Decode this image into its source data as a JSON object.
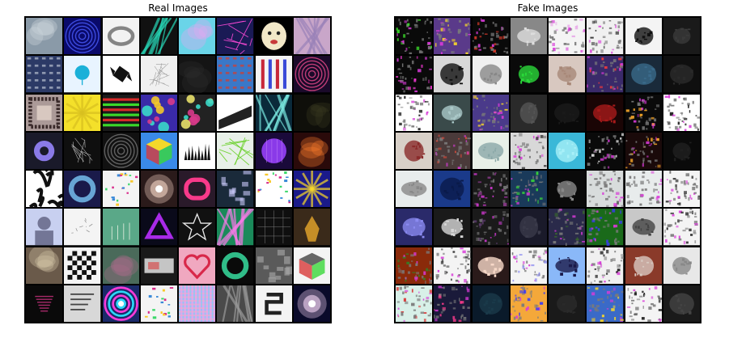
{
  "titles": {
    "real": "Real Images",
    "fake": "Fake Images"
  },
  "grid": {
    "rows": 8,
    "cols": 8
  },
  "real_tiles": [
    {
      "bg": "#8a9aa8",
      "fg": "#cfd6dc",
      "motif": "blur"
    },
    {
      "bg": "#0a0a6a",
      "fg": "#4a5cff",
      "motif": "rings"
    },
    {
      "bg": "#f2f2f2",
      "fg": "#555555",
      "motif": "ring-outline"
    },
    {
      "bg": "#111111",
      "fg": "#27d6b6",
      "motif": "streaks"
    },
    {
      "bg": "#6ad4e8",
      "fg": "#e6a6f0",
      "motif": "blur"
    },
    {
      "bg": "#1a1a55",
      "fg": "#ff4ad8",
      "motif": "lines"
    },
    {
      "bg": "#000000",
      "fg": "#f2e8c8",
      "motif": "face"
    },
    {
      "bg": "#c9a6c9",
      "fg": "#9a82b8",
      "motif": "streaks"
    },
    {
      "bg": "#2c3a66",
      "fg": "#b8c0d0",
      "motif": "pattern"
    },
    {
      "bg": "#e8f4ff",
      "fg": "#1ab0d8",
      "motif": "drop"
    },
    {
      "bg": "#ffffff",
      "fg": "#111111",
      "motif": "candy"
    },
    {
      "bg": "#f0f0f0",
      "fg": "#999999",
      "motif": "mesh"
    },
    {
      "bg": "#141414",
      "fg": "#2a2a2a",
      "motif": "blur"
    },
    {
      "bg": "#3a78c8",
      "fg": "#d83a2a",
      "motif": "pattern"
    },
    {
      "bg": "#f4f4f4",
      "fg": "#c8283a",
      "motif": "stripes-v"
    },
    {
      "bg": "#1a0a2a",
      "fg": "#e84a8a",
      "motif": "rings"
    },
    {
      "bg": "#ab9a98",
      "fg": "#3a2a2a",
      "motif": "frame"
    },
    {
      "bg": "#f4e02a",
      "fg": "#d8c020",
      "motif": "burst"
    },
    {
      "bg": "#1a1a1a",
      "fg": "#d82a2a",
      "motif": "stripes-h"
    },
    {
      "bg": "#3a2aa8",
      "fg": "#f4c82a",
      "motif": "dots"
    },
    {
      "bg": "#222222",
      "fg": "#e8e06a",
      "motif": "dots"
    },
    {
      "bg": "#ffffff",
      "fg": "#222222",
      "motif": "cylinder"
    },
    {
      "bg": "#0a2a3a",
      "fg": "#7ae8e0",
      "motif": "streaks"
    },
    {
      "bg": "#0f0f0a",
      "fg": "#3a3a20",
      "motif": "blur"
    },
    {
      "bg": "#1a1a2a",
      "fg": "#8a7ae8",
      "motif": "gear"
    },
    {
      "bg": "#0f0f0f",
      "fg": "#c8c8c8",
      "motif": "mesh"
    },
    {
      "bg": "#111111",
      "fg": "#777777",
      "motif": "rings"
    },
    {
      "bg": "#3a8ae8",
      "fg": "#f4d82a",
      "motif": "cube"
    },
    {
      "bg": "#ffffff",
      "fg": "#111111",
      "motif": "spikes"
    },
    {
      "bg": "#e8f0e8",
      "fg": "#6ad02a",
      "motif": "lines"
    },
    {
      "bg": "#1a0a3a",
      "fg": "#8a3ae8",
      "motif": "sphere"
    },
    {
      "bg": "#2a0a0a",
      "fg": "#f87a2a",
      "motif": "blur"
    },
    {
      "bg": "#ffffff",
      "fg": "#111111",
      "motif": "maze"
    },
    {
      "bg": "#1a1a4a",
      "fg": "#7ac8f8",
      "motif": "ring-glow"
    },
    {
      "bg": "#f4f4f4",
      "fg": "#d82a8a",
      "motif": "confetti"
    },
    {
      "bg": "#2a1a1a",
      "fg": "#f8d8c8",
      "motif": "glow"
    },
    {
      "bg": "#2a1a2a",
      "fg": "#f83a8a",
      "motif": "capsule"
    },
    {
      "bg": "#1a2a3a",
      "fg": "#c8c8f8",
      "motif": "city"
    },
    {
      "bg": "#ffffff",
      "fg": "#3a2a8a",
      "motif": "confetti"
    },
    {
      "bg": "#1a1a8a",
      "fg": "#f8d82a",
      "motif": "burst"
    },
    {
      "bg": "#c8d0f0",
      "fg": "#3a3a5a",
      "motif": "portrait"
    },
    {
      "bg": "#f4f4f4",
      "fg": "#888888",
      "motif": "sketch"
    },
    {
      "bg": "#5aa888",
      "fg": "#d8e8d8",
      "motif": "sticks"
    },
    {
      "bg": "#0a0a1a",
      "fg": "#a82ae8",
      "motif": "triangle"
    },
    {
      "bg": "#111111",
      "fg": "#e8e8e8",
      "motif": "star"
    },
    {
      "bg": "#1a8a5a",
      "fg": "#f87ae8",
      "motif": "streaks"
    },
    {
      "bg": "#0f0f0f",
      "fg": "#888888",
      "motif": "grid"
    },
    {
      "bg": "#3a2a1a",
      "fg": "#e8a82a",
      "motif": "figure"
    },
    {
      "bg": "#6a5a4a",
      "fg": "#d8c8a8",
      "motif": "blur"
    },
    {
      "bg": "#f4f4f4",
      "fg": "#111111",
      "motif": "checker"
    },
    {
      "bg": "#4a6a5a",
      "fg": "#a86a8a",
      "motif": "blur"
    },
    {
      "bg": "#1a1a1a",
      "fg": "#f0f0f0",
      "motif": "screen"
    },
    {
      "bg": "#f0a8c0",
      "fg": "#d8284a",
      "motif": "heart"
    },
    {
      "bg": "#0a0a0a",
      "fg": "#3ae8a8",
      "motif": "ring-glow"
    },
    {
      "bg": "#5a5a5a",
      "fg": "#aaaaaa",
      "motif": "city"
    },
    {
      "bg": "#f4f4f4",
      "fg": "#666666",
      "motif": "cube"
    },
    {
      "bg": "#0a0a0a",
      "fg": "#a82a6a",
      "motif": "heart-stripes"
    },
    {
      "bg": "#d8d8d8",
      "fg": "#444444",
      "motif": "text-lines"
    },
    {
      "bg": "#1a2a6a",
      "fg": "#2ad8f8",
      "motif": "swirl"
    },
    {
      "bg": "#f4f4f4",
      "fg": "#d82a2a",
      "motif": "confetti"
    },
    {
      "bg": "#d8a8f0",
      "fg": "#6ad8f0",
      "motif": "plaid"
    },
    {
      "bg": "#4a4a4a",
      "fg": "#9a9a9a",
      "motif": "streaks"
    },
    {
      "bg": "#f4f4f4",
      "fg": "#222222",
      "motif": "glyph"
    },
    {
      "bg": "#0a0a2a",
      "fg": "#f8d8f8",
      "motif": "glow"
    }
  ],
  "fake_tiles": [
    {
      "bg": "#0a0a0a",
      "fg": "#3ad82a",
      "motif": "noise"
    },
    {
      "bg": "#5a3a8a",
      "fg": "#f8d82a",
      "motif": "noise"
    },
    {
      "bg": "#0a0a0a",
      "fg": "#d83a2a",
      "motif": "noise"
    },
    {
      "bg": "#888888",
      "fg": "#dddddd",
      "motif": "blob"
    },
    {
      "bg": "#f4f4f4",
      "fg": "#e8a8e8",
      "motif": "noise"
    },
    {
      "bg": "#f0f0f0",
      "fg": "#333333",
      "motif": "noise"
    },
    {
      "bg": "#f4f4f4",
      "fg": "#111111",
      "motif": "blob"
    },
    {
      "bg": "#1a1a1a",
      "fg": "#3a3a3a",
      "motif": "blob"
    },
    {
      "bg": "#0a0a0a",
      "fg": "#f83ad8",
      "motif": "noise"
    },
    {
      "bg": "#d8d8d8",
      "fg": "#111111",
      "motif": "blob"
    },
    {
      "bg": "#f0f0f0",
      "fg": "#888888",
      "motif": "blob"
    },
    {
      "bg": "#0a0a0a",
      "fg": "#2ad83a",
      "motif": "blob"
    },
    {
      "bg": "#d8c8c0",
      "fg": "#a88878",
      "motif": "blob"
    },
    {
      "bg": "#3a2a6a",
      "fg": "#f83a3a",
      "motif": "noise"
    },
    {
      "bg": "#1a2a3a",
      "fg": "#3a6a8a",
      "motif": "blob"
    },
    {
      "bg": "#0f0f0f",
      "fg": "#2a2a2a",
      "motif": "blob"
    },
    {
      "bg": "#ffffff",
      "fg": "#111111",
      "motif": "noise"
    },
    {
      "bg": "#3a4a4a",
      "fg": "#aac8c8",
      "motif": "blob"
    },
    {
      "bg": "#4a3a8a",
      "fg": "#f8d82a",
      "motif": "noise"
    },
    {
      "bg": "#2a2a2a",
      "fg": "#555555",
      "motif": "blob"
    },
    {
      "bg": "#0a0a0a",
      "fg": "#1a1a1a",
      "motif": "blob"
    },
    {
      "bg": "#1a0505",
      "fg": "#a81a1a",
      "motif": "blob"
    },
    {
      "bg": "#0a0a0a",
      "fg": "#f8a82a",
      "motif": "noise"
    },
    {
      "bg": "#ffffff",
      "fg": "#111111",
      "motif": "noise"
    },
    {
      "bg": "#d8d0c8",
      "fg": "#8a2a2a",
      "motif": "blob"
    },
    {
      "bg": "#4a3a3a",
      "fg": "#d84a3a",
      "motif": "noise"
    },
    {
      "bg": "#e8f0e8",
      "fg": "#8aa8a8",
      "motif": "blob"
    },
    {
      "bg": "#d8d8d8",
      "fg": "#444444",
      "motif": "noise"
    },
    {
      "bg": "#3ab8d8",
      "fg": "#a8f0f8",
      "motif": "blob"
    },
    {
      "bg": "#0a0a0a",
      "fg": "#f4f4f4",
      "motif": "noise"
    },
    {
      "bg": "#1a0a0a",
      "fg": "#f8a82a",
      "motif": "noise"
    },
    {
      "bg": "#0a0a0a",
      "fg": "#1f1f1f",
      "motif": "blob"
    },
    {
      "bg": "#e8ecec",
      "fg": "#888888",
      "motif": "blob"
    },
    {
      "bg": "#1a3a8a",
      "fg": "#0a1a4a",
      "motif": "blob"
    },
    {
      "bg": "#1a1a1a",
      "fg": "#8a3a8a",
      "motif": "noise"
    },
    {
      "bg": "#1a3a5a",
      "fg": "#3ad83a",
      "motif": "noise"
    },
    {
      "bg": "#0a0a0a",
      "fg": "#888888",
      "motif": "blob"
    },
    {
      "bg": "#d8dcdc",
      "fg": "#555555",
      "motif": "noise"
    },
    {
      "bg": "#e8ecec",
      "fg": "#666666",
      "motif": "noise"
    },
    {
      "bg": "#f4f4f4",
      "fg": "#222222",
      "motif": "noise"
    },
    {
      "bg": "#2a2a6a",
      "fg": "#8a8af0",
      "motif": "blob"
    },
    {
      "bg": "#1a1a1a",
      "fg": "#d8d8d8",
      "motif": "blob"
    },
    {
      "bg": "#1a1a1a",
      "fg": "#5a3a6a",
      "motif": "noise"
    },
    {
      "bg": "#1a1a2a",
      "fg": "#3a3a4a",
      "motif": "blob"
    },
    {
      "bg": "#2a2a4a",
      "fg": "#3a6a2a",
      "motif": "noise"
    },
    {
      "bg": "#1a6a1a",
      "fg": "#3a3af8",
      "motif": "noise"
    },
    {
      "bg": "#c8c8c8",
      "fg": "#444444",
      "motif": "blob"
    },
    {
      "bg": "#f4f4f4",
      "fg": "#222222",
      "motif": "noise"
    },
    {
      "bg": "#8a2a0a",
      "fg": "#2a8a2a",
      "motif": "noise"
    },
    {
      "bg": "#f4f4f4",
      "fg": "#333333",
      "motif": "noise"
    },
    {
      "bg": "#2a1a1a",
      "fg": "#f8d8c8",
      "motif": "blob"
    },
    {
      "bg": "#f4f4f4",
      "fg": "#8a8af0",
      "motif": "noise"
    },
    {
      "bg": "#8ab8f8",
      "fg": "#1a1a4a",
      "motif": "blob"
    },
    {
      "bg": "#f0f0f0",
      "fg": "#111111",
      "motif": "noise"
    },
    {
      "bg": "#8a3a2a",
      "fg": "#d8c8c0",
      "motif": "blob"
    },
    {
      "bg": "#e8e8e8",
      "fg": "#888888",
      "motif": "blob"
    },
    {
      "bg": "#d8f0e8",
      "fg": "#d83a3a",
      "motif": "noise"
    },
    {
      "bg": "#1a1a3a",
      "fg": "#f83a8a",
      "motif": "noise"
    },
    {
      "bg": "#0a1a2a",
      "fg": "#1a3a4a",
      "motif": "blob"
    },
    {
      "bg": "#f4a83a",
      "fg": "#3a3af8",
      "motif": "noise"
    },
    {
      "bg": "#1a1a1a",
      "fg": "#2a2a2a",
      "motif": "blob"
    },
    {
      "bg": "#3a6ac8",
      "fg": "#f8d82a",
      "motif": "noise"
    },
    {
      "bg": "#f4f4f4",
      "fg": "#111111",
      "motif": "noise"
    },
    {
      "bg": "#1a1a1a",
      "fg": "#444444",
      "motif": "blob"
    }
  ]
}
